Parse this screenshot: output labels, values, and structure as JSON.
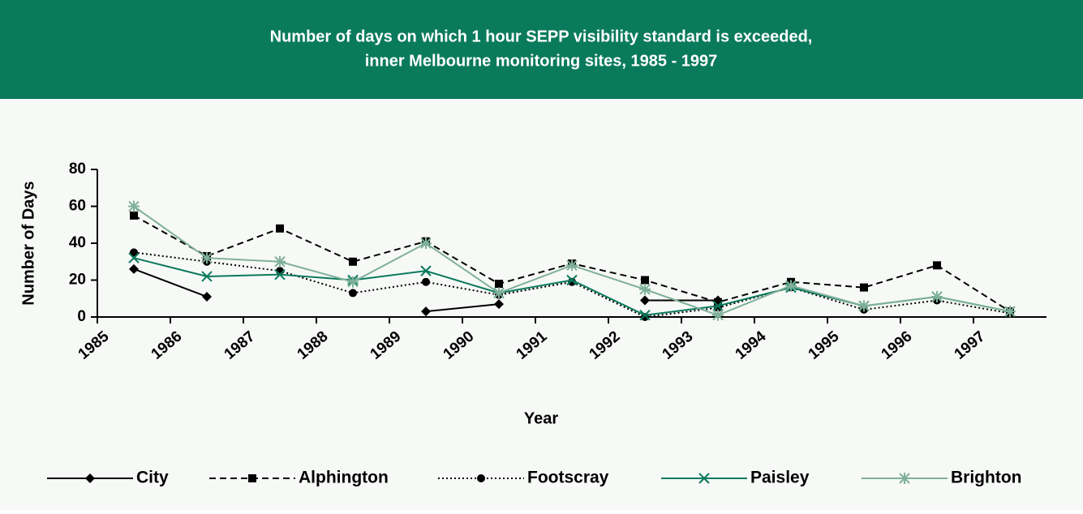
{
  "chart_data": {
    "type": "line",
    "title": [
      "Number of days on which 1 hour SEPP visibility standard is exceeded,",
      "inner Melbourne monitoring sites, 1985 - 1997"
    ],
    "x_label": "Year",
    "y_label": "Number of Days",
    "categories": [
      "1985",
      "1986",
      "1987",
      "1988",
      "1989",
      "1990",
      "1991",
      "1992",
      "1993",
      "1994",
      "1995",
      "1996",
      "1997"
    ],
    "ylim": [
      0,
      80
    ],
    "yticks": [
      0,
      20,
      40,
      60,
      80
    ],
    "series": [
      {
        "name": "City",
        "color": "#000000",
        "dash": "solid",
        "marker": "diamond",
        "values": [
          26,
          11,
          null,
          null,
          3,
          7,
          null,
          9,
          9,
          null,
          null,
          null,
          null
        ]
      },
      {
        "name": "Alphington",
        "color": "#000000",
        "dash": "dashed",
        "marker": "square",
        "values": [
          55,
          33,
          48,
          30,
          41,
          18,
          29,
          20,
          8,
          19,
          16,
          28,
          3
        ]
      },
      {
        "name": "Footscray",
        "color": "#000000",
        "dash": "dotted",
        "marker": "circle",
        "values": [
          35,
          30,
          25,
          13,
          19,
          12,
          19,
          0,
          5,
          16,
          4,
          9,
          2
        ]
      },
      {
        "name": "Paisley",
        "color": "#0a7a5c",
        "dash": "solid",
        "marker": "x",
        "values": [
          32,
          22,
          23,
          20,
          25,
          13,
          20,
          1,
          6,
          16,
          6,
          11,
          3
        ]
      },
      {
        "name": "Brighton",
        "color": "#7fb09a",
        "dash": "solid",
        "marker": "asterisk",
        "values": [
          60,
          32,
          30,
          19,
          40,
          13,
          28,
          15,
          1,
          17,
          6,
          11,
          3
        ]
      }
    ]
  }
}
